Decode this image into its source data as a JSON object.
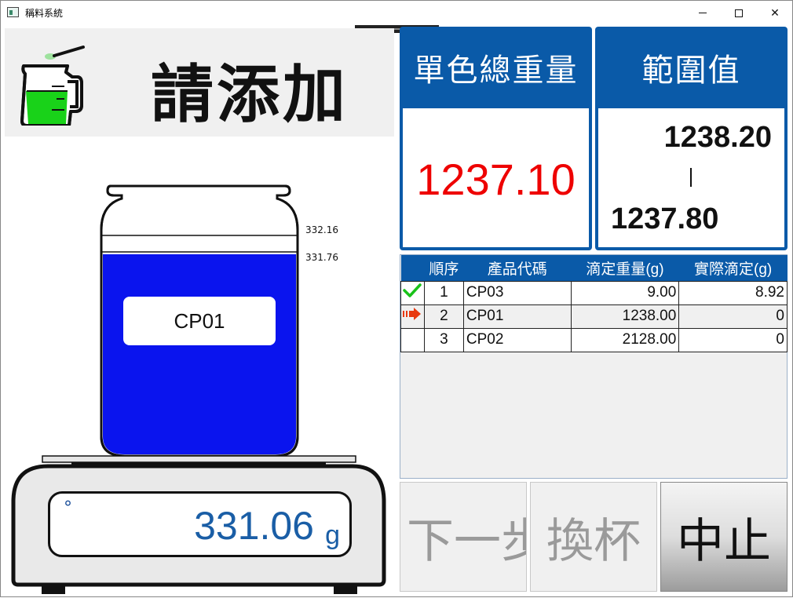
{
  "window": {
    "title": "稱料系統"
  },
  "prompt": {
    "text": "請添加"
  },
  "jar": {
    "upper_mark": "332.16",
    "lower_mark": "331.76",
    "label": "CP01",
    "fill_color": "#0a14ee"
  },
  "scale": {
    "value": "331.06",
    "unit": "g",
    "indicator": "°"
  },
  "total_panel": {
    "title": "單色總重量",
    "value": "1237.10"
  },
  "range_panel": {
    "title": "範圍值",
    "high": "1238.20",
    "low": "1237.80"
  },
  "table": {
    "headers": [
      "順序",
      "產品代碼",
      "滴定重量(g)",
      "實際滴定(g)"
    ],
    "rows": [
      {
        "status": "check-icon",
        "order": "1",
        "code": "CP03",
        "target": "9.00",
        "actual": "8.92"
      },
      {
        "status": "arrow-icon",
        "order": "2",
        "code": "CP01",
        "target": "1238.00",
        "actual": "0"
      },
      {
        "status": "",
        "order": "3",
        "code": "CP02",
        "target": "2128.00",
        "actual": "0"
      }
    ]
  },
  "buttons": {
    "next": "下一步",
    "swap": "換杯",
    "stop": "中止"
  },
  "colors": {
    "accent": "#0a5aa8",
    "total_value": "#e00000",
    "scale_text": "#1a5ea6"
  }
}
